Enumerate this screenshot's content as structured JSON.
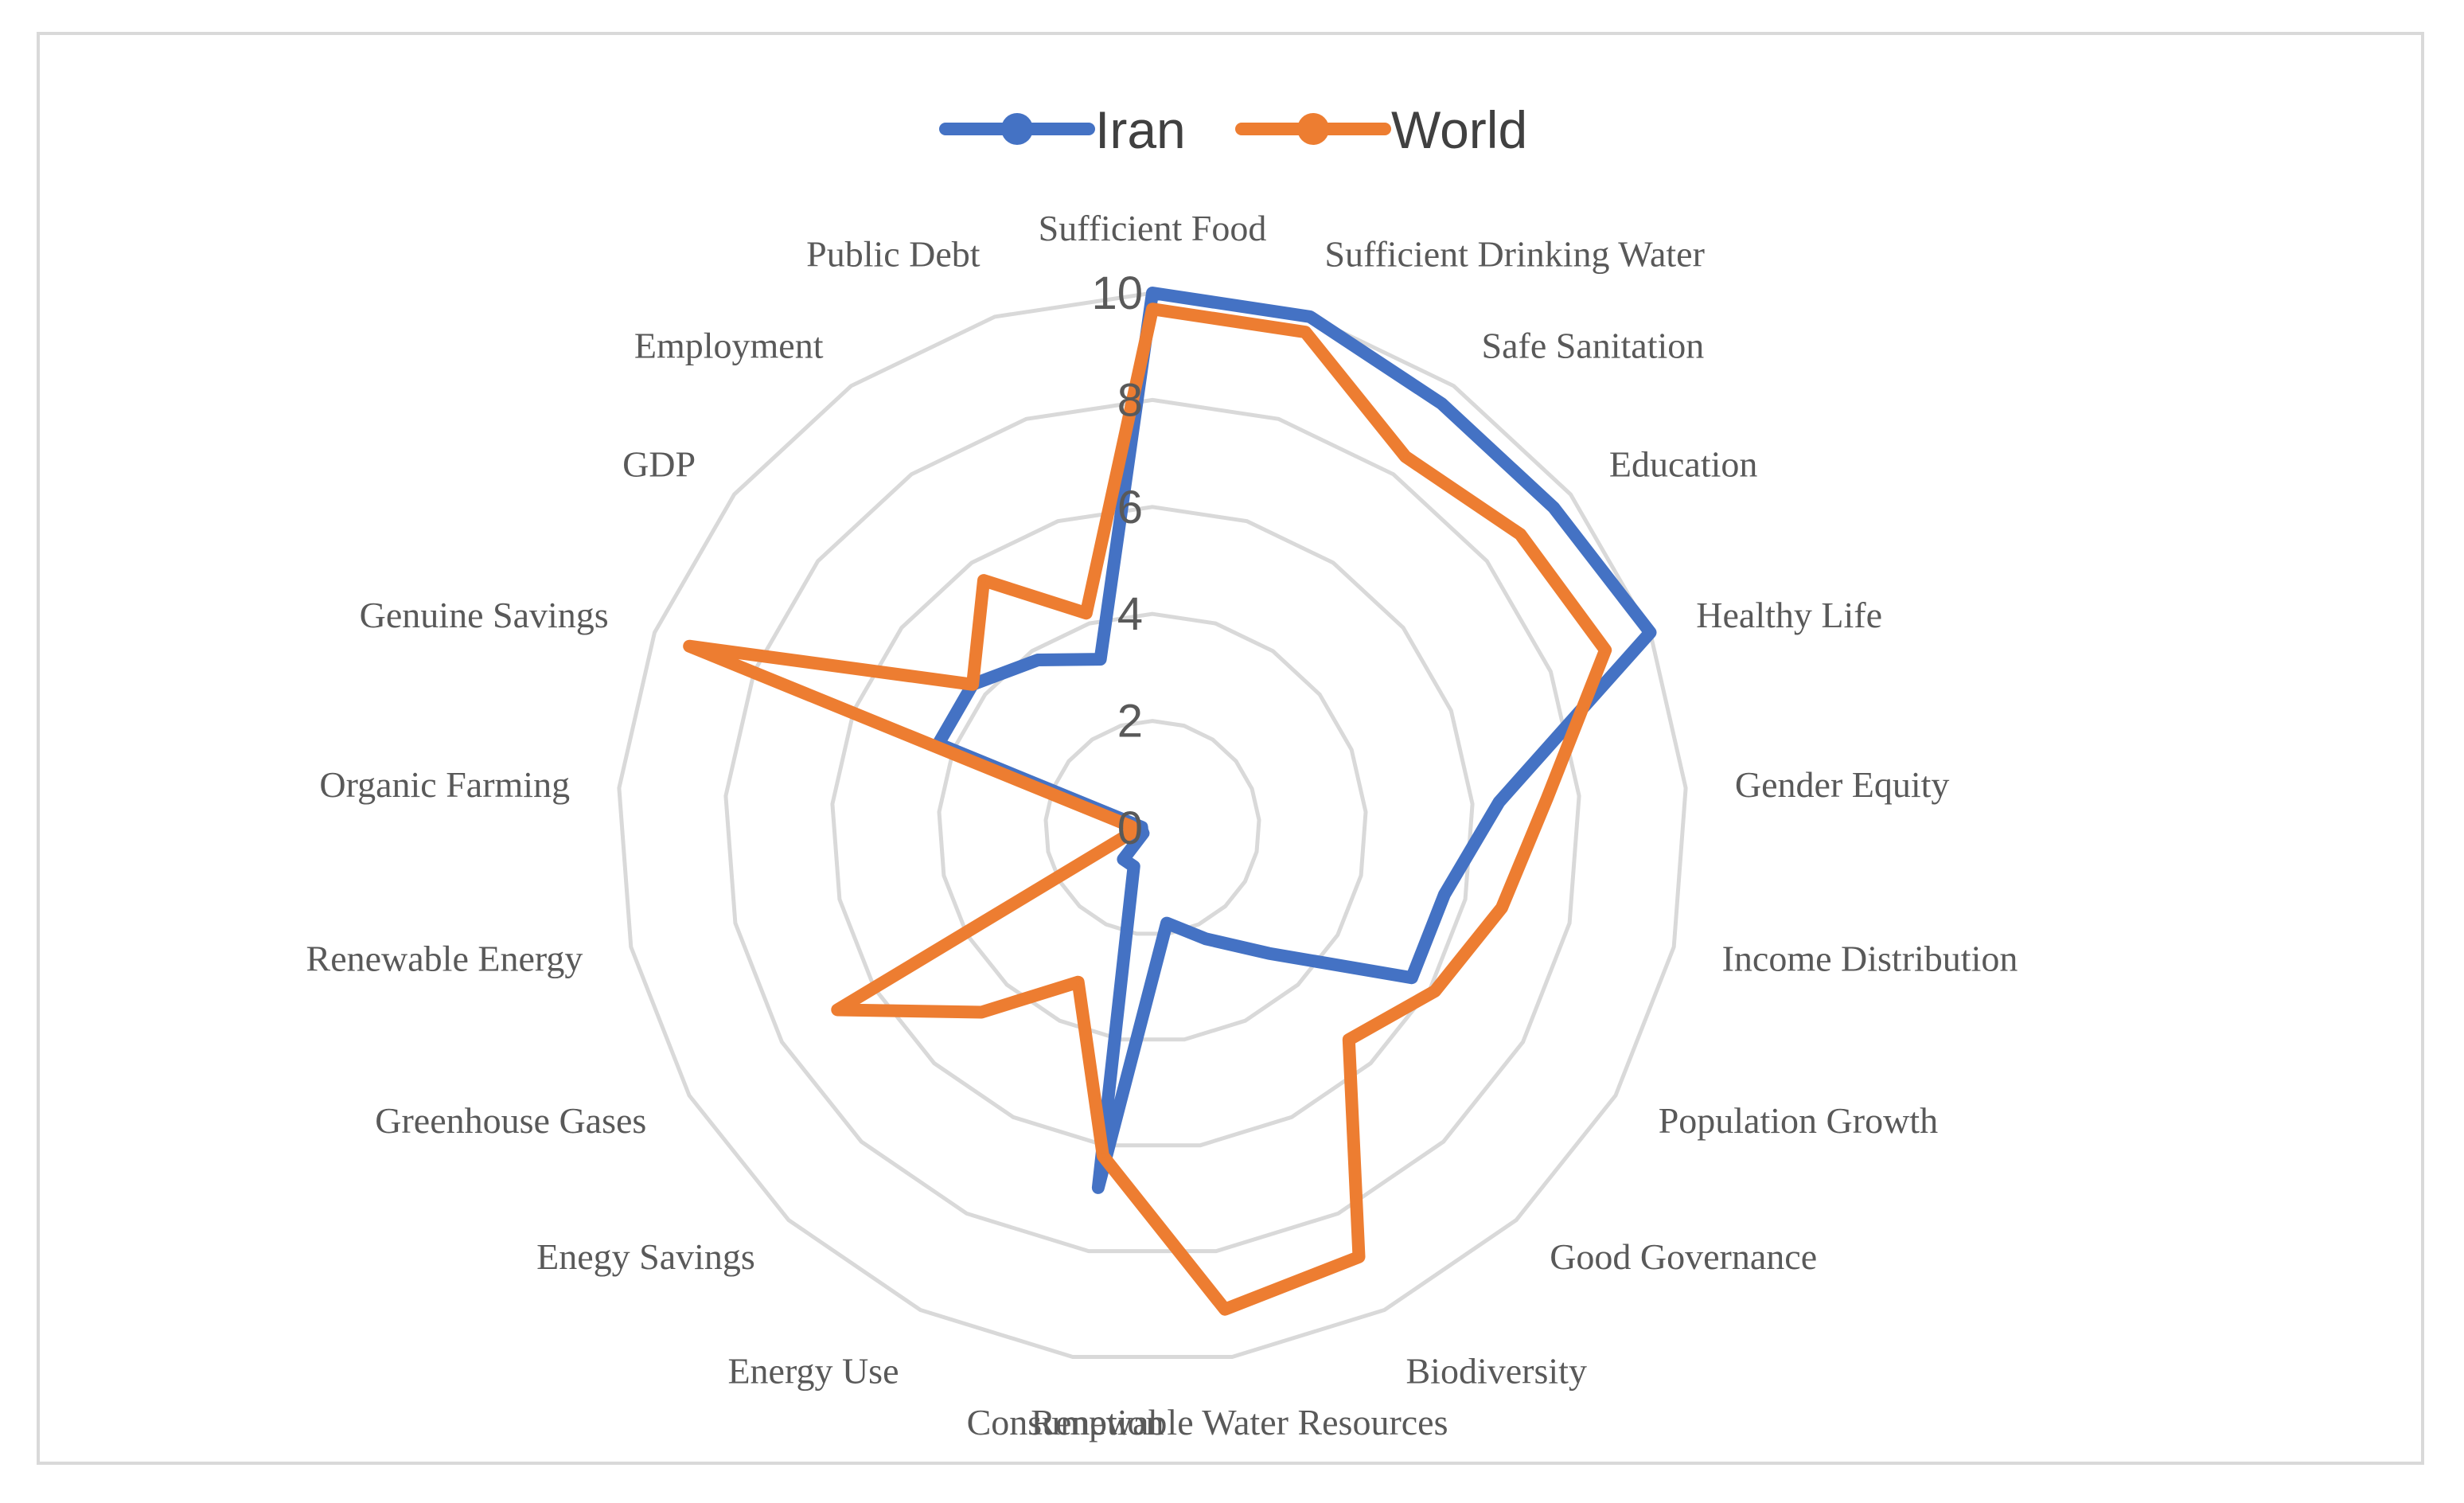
{
  "chart_data": {
    "type": "radar",
    "title": "",
    "categories": [
      "Sufficient Food",
      "Sufficient Drinking Water",
      "Safe Sanitation",
      "Education",
      "Healthy Life",
      "Gender Equity",
      "Income Distribution",
      "Population Growth",
      "Good Governance",
      "Biodiversity",
      "Renewable Water Resources",
      "Consumption",
      "Energy Use",
      "Enegy Savings",
      "Greenhouse Gases",
      "Renewable Energy",
      "Organic Farming",
      "Genuine Savings",
      "GDP",
      "Employment",
      "Public Debt"
    ],
    "series": [
      {
        "name": "Iran",
        "color": "#4472c4",
        "values": [
          10,
          10,
          9.6,
          9.6,
          10,
          6.5,
          5.6,
          5.6,
          3.2,
          2.3,
          1.8,
          6.8,
          0.8,
          0.8,
          0.2,
          0.2,
          0.2,
          4.3,
          4.3,
          3.8,
          3.3
        ]
      },
      {
        "name": "World",
        "color": "#ed7d31",
        "values": [
          9.7,
          9.7,
          8.4,
          8.8,
          9.1,
          7.4,
          6.7,
          6.1,
          5.4,
          8.9,
          9.1,
          6.2,
          3.2,
          4.7,
          6.8,
          0.4,
          0.4,
          9.3,
          4.3,
          5.6,
          4.2
        ]
      }
    ],
    "rlim": [
      0,
      10
    ],
    "rticks": [
      "0",
      "2",
      "4",
      "6",
      "8",
      "10"
    ],
    "legend": "top"
  }
}
